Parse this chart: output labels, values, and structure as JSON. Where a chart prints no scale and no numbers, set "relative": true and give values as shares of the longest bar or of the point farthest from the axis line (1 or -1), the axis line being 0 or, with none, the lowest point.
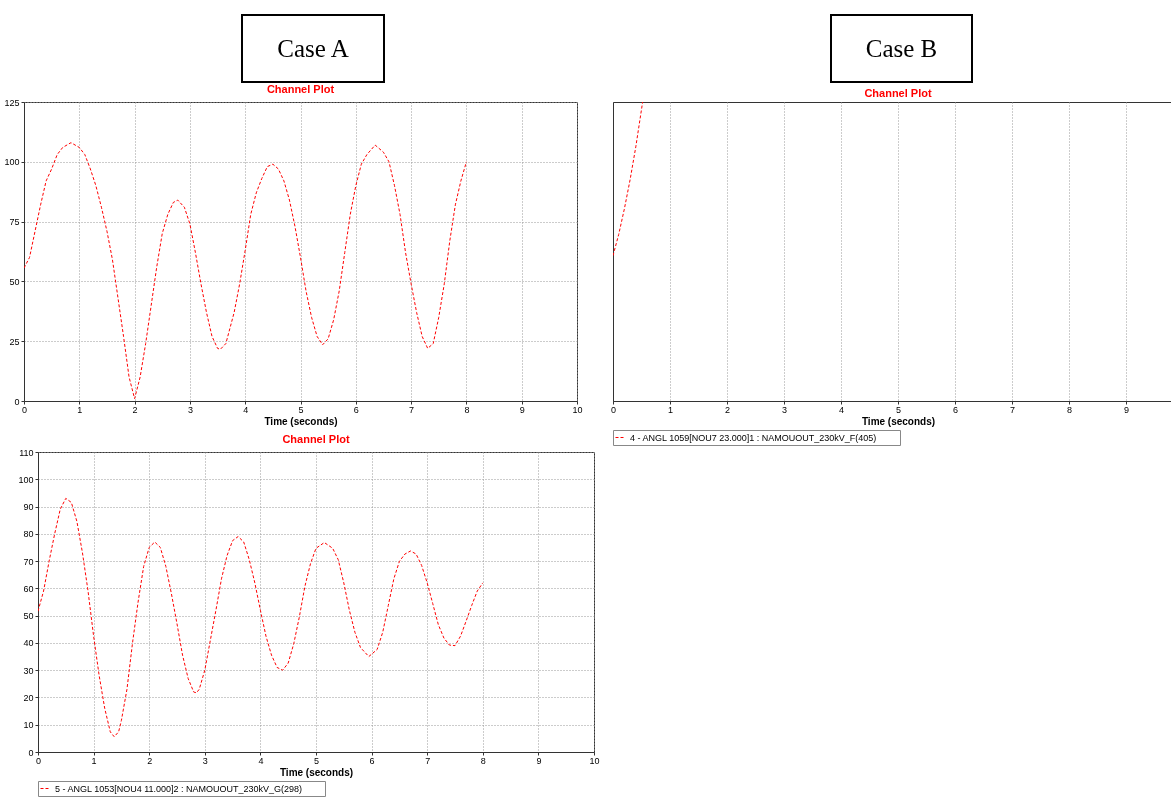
{
  "chart_data": [
    {
      "type": "line",
      "title": "Channel Plot",
      "xlabel": "Time (seconds)",
      "annotations": [
        "Case A"
      ],
      "xlim": [
        0,
        10
      ],
      "xticks": [
        0,
        1,
        2,
        3,
        4,
        5,
        6,
        7,
        8,
        9,
        10
      ],
      "ylim": [
        0,
        125
      ],
      "yticks": [
        0,
        25,
        50,
        75,
        100,
        125
      ],
      "grid": true,
      "line_style": "dashed",
      "series": [
        {
          "color": "#ff0000",
          "x": [
            0,
            0.1,
            0.2,
            0.3,
            0.4,
            0.5,
            0.6,
            0.7,
            0.85,
            1.0,
            1.1,
            1.2,
            1.3,
            1.4,
            1.5,
            1.6,
            1.7,
            1.8,
            1.9,
            2.0,
            2.1,
            2.2,
            2.3,
            2.4,
            2.5,
            2.6,
            2.7,
            2.78,
            2.9,
            3.0,
            3.1,
            3.2,
            3.3,
            3.4,
            3.5,
            3.55,
            3.65,
            3.8,
            3.9,
            4.0,
            4.1,
            4.2,
            4.3,
            4.4,
            4.5,
            4.6,
            4.7,
            4.8,
            4.9,
            5.0,
            5.1,
            5.2,
            5.3,
            5.4,
            5.5,
            5.6,
            5.7,
            5.8,
            5.9,
            6.0,
            6.1,
            6.2,
            6.35,
            6.5,
            6.6,
            6.7,
            6.8,
            6.9,
            7.0,
            7.1,
            7.2,
            7.3,
            7.4,
            7.5,
            7.6,
            7.7,
            7.8,
            7.9,
            8.0
          ],
          "values": [
            55.6,
            60,
            71,
            82,
            92,
            97,
            103,
            106,
            108,
            106,
            103,
            97,
            90,
            81,
            71,
            59,
            43,
            27,
            10,
            1,
            10,
            24,
            40,
            56,
            70,
            78,
            83,
            84,
            81,
            74,
            62,
            49,
            37,
            27,
            22,
            21.6,
            24,
            37,
            49,
            63,
            78,
            87,
            93,
            98,
            99,
            97,
            92,
            84,
            73,
            60,
            46,
            35,
            27,
            23.5,
            26,
            34,
            46,
            62,
            78,
            90,
            99,
            103,
            107,
            104,
            100,
            90,
            78,
            62,
            49,
            37,
            27,
            22,
            24,
            35,
            49,
            67,
            82,
            92,
            100
          ]
        }
      ]
    },
    {
      "type": "line",
      "title": "Channel Plot",
      "xlabel": "Time (seconds)",
      "annotations": [
        "Case B"
      ],
      "xlim": [
        0,
        10
      ],
      "xticks": [
        0,
        1,
        2,
        3,
        4,
        5,
        6,
        7,
        8,
        9
      ],
      "relative": true,
      "grid": "x",
      "line_style": "dashed",
      "legend": "bottom",
      "series": [
        {
          "name": "4 - ANGL  1059[NOU7        23.000]1 : NAMOUOUT_230kV_F(405)",
          "color": "#ff0000",
          "x": [
            0,
            0.1,
            0.2,
            0.3,
            0.4,
            0.52
          ],
          "values": [
            0.486,
            0.557,
            0.643,
            0.74,
            0.85,
            1
          ]
        }
      ]
    },
    {
      "type": "line",
      "title": "Channel Plot",
      "xlabel": "Time (seconds)",
      "xlim": [
        0,
        10
      ],
      "xticks": [
        0,
        1,
        2,
        3,
        4,
        5,
        6,
        7,
        8,
        9,
        10
      ],
      "ylim": [
        0,
        110
      ],
      "yticks": [
        0,
        10,
        20,
        30,
        40,
        50,
        60,
        70,
        80,
        90,
        100,
        110
      ],
      "grid": true,
      "line_style": "dashed",
      "legend": "bottom",
      "series": [
        {
          "name": "5 - ANGL  1053[NOU4        11.000]2 : NAMOUOUT_230kV_G(298)",
          "color": "#ff0000",
          "x": [
            0,
            0.1,
            0.2,
            0.3,
            0.4,
            0.5,
            0.6,
            0.7,
            0.8,
            0.9,
            1.0,
            1.1,
            1.2,
            1.3,
            1.37,
            1.45,
            1.5,
            1.6,
            1.7,
            1.8,
            1.9,
            2.0,
            2.1,
            2.2,
            2.3,
            2.4,
            2.5,
            2.6,
            2.7,
            2.8,
            2.85,
            2.9,
            3.0,
            3.1,
            3.2,
            3.3,
            3.4,
            3.5,
            3.6,
            3.7,
            3.8,
            3.9,
            4.0,
            4.1,
            4.2,
            4.3,
            4.4,
            4.5,
            4.6,
            4.7,
            4.8,
            4.9,
            5.0,
            5.15,
            5.3,
            5.4,
            5.5,
            5.6,
            5.7,
            5.8,
            5.95,
            6.1,
            6.2,
            6.3,
            6.4,
            6.5,
            6.6,
            6.7,
            6.8,
            6.9,
            7.0,
            7.1,
            7.2,
            7.3,
            7.4,
            7.5,
            7.6,
            7.7,
            7.8,
            7.9,
            8.0
          ],
          "values": [
            51.6,
            59,
            70,
            80,
            89,
            93,
            91.5,
            84.5,
            73,
            59,
            42.5,
            28,
            16,
            7.4,
            5.6,
            7.4,
            11.6,
            23,
            40,
            55,
            68,
            75,
            77,
            75,
            68,
            58,
            47,
            35.5,
            27,
            22,
            21.7,
            23,
            30,
            41,
            52,
            63.5,
            72,
            77.5,
            79,
            77,
            70.5,
            62,
            52,
            42.5,
            35.5,
            31,
            30,
            32.6,
            39.7,
            49.5,
            60.7,
            69,
            74.7,
            76.8,
            74.7,
            70.5,
            62,
            52,
            43.9,
            38.3,
            35,
            37.6,
            43.9,
            53.7,
            63.5,
            69.9,
            72.6,
            73.7,
            72.6,
            68.4,
            62,
            54.4,
            46.7,
            41.8,
            39.2,
            39,
            42.5,
            48,
            53.7,
            59,
            62
          ]
        }
      ]
    }
  ]
}
